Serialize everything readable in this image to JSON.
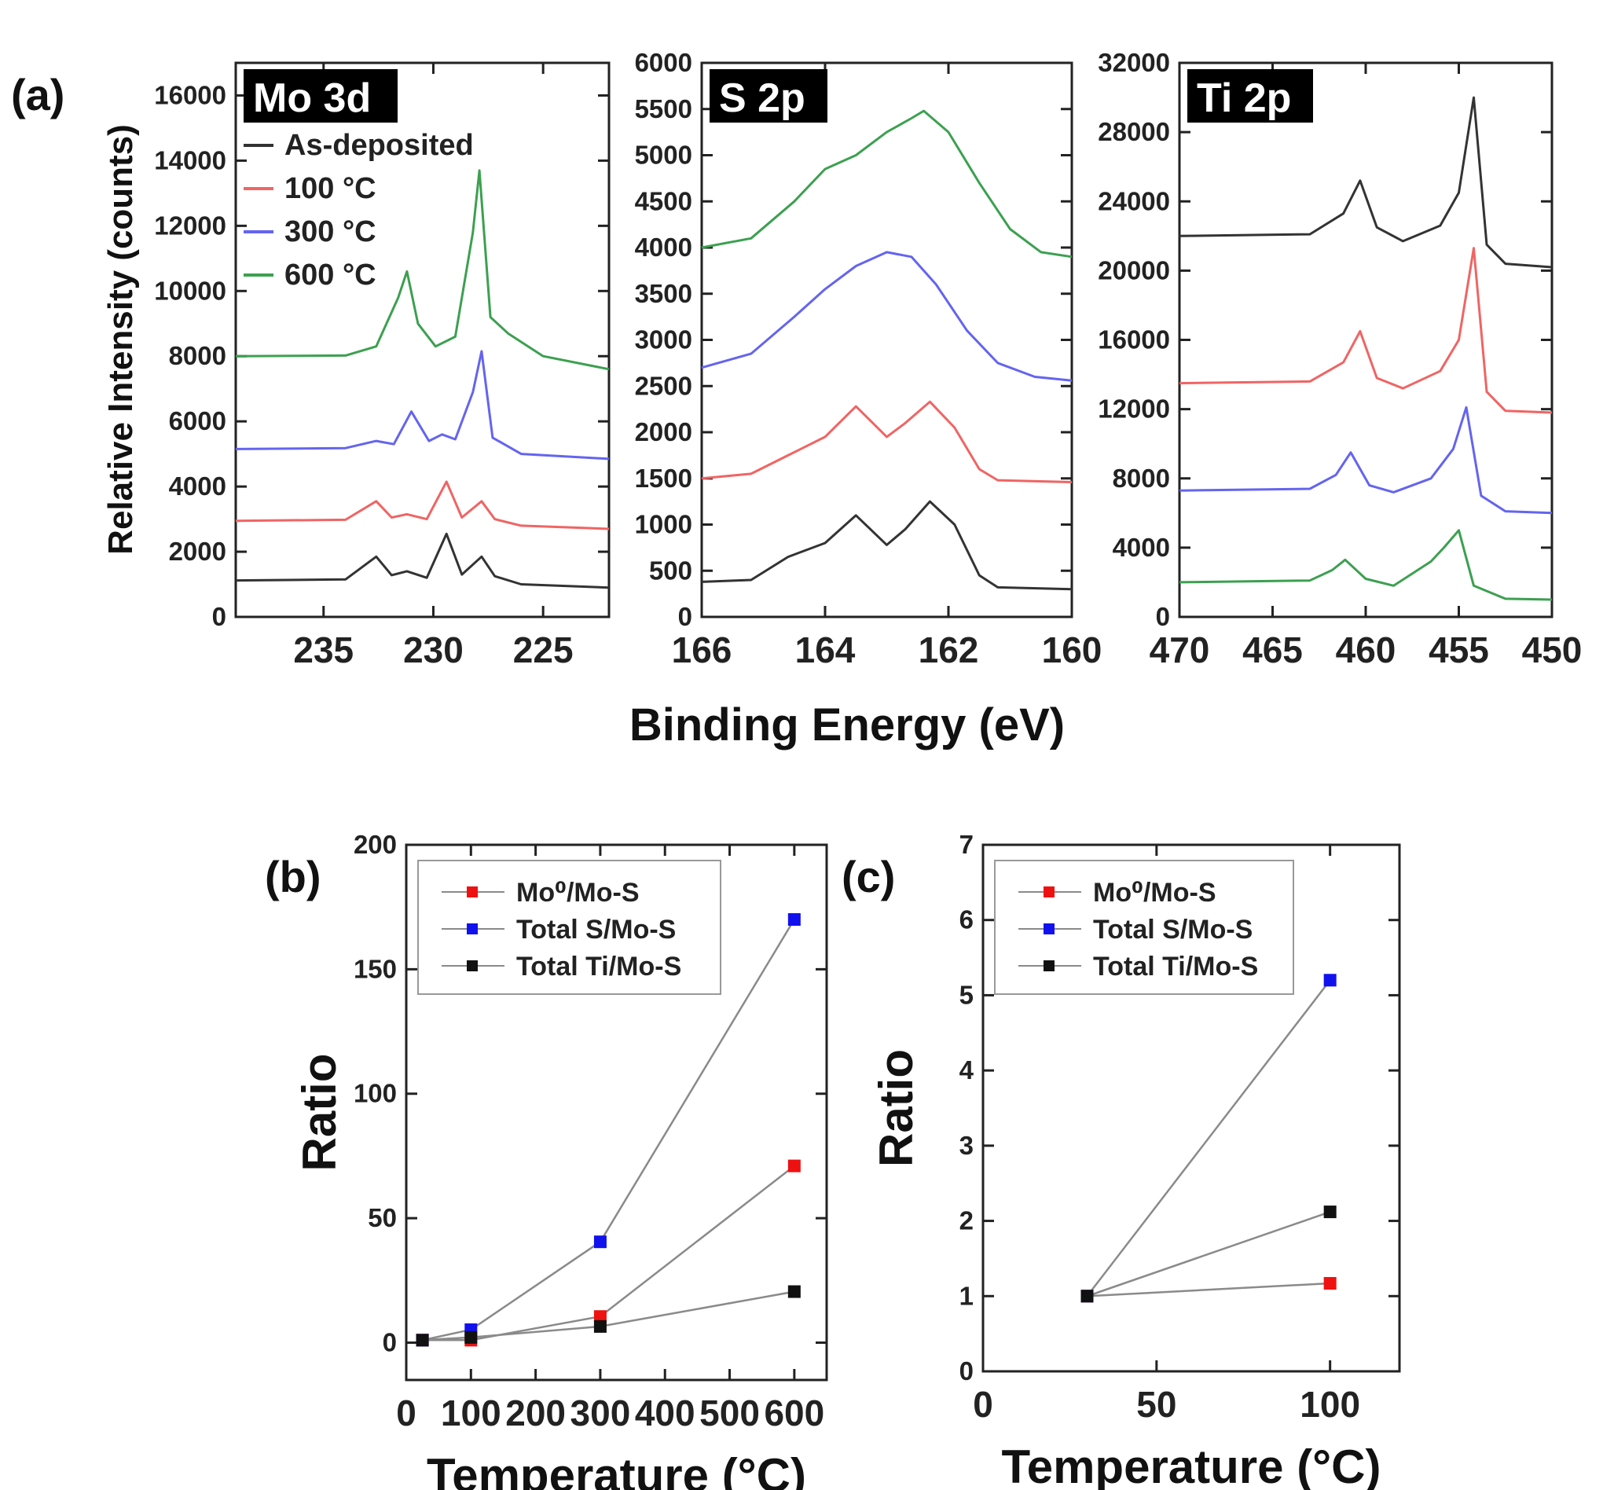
{
  "chart_data": [
    {
      "type": "line",
      "panel_label": "(a)",
      "panel_title": "Mo 3d",
      "ylabel": "Relative Intensity (counts)",
      "xlabel": "Binding Energy (eV)",
      "xlim": [
        239,
        222
      ],
      "ylim": [
        0,
        17000
      ],
      "x_ticks": [
        235,
        230,
        225
      ],
      "y_ticks": [
        0,
        2000,
        4000,
        6000,
        8000,
        10000,
        12000,
        14000,
        16000
      ],
      "legend_position": "top-left",
      "series": [
        {
          "name": "As-deposited",
          "color": "#333333",
          "x": [
            239,
            234,
            232.6,
            231.9,
            231.2,
            230.3,
            229.4,
            228.7,
            227.8,
            227.2,
            226,
            222
          ],
          "y": [
            1120,
            1150,
            1850,
            1280,
            1400,
            1200,
            2550,
            1300,
            1850,
            1250,
            1000,
            900
          ]
        },
        {
          "name": "100 °C",
          "color": "#f06464",
          "x": [
            239,
            234,
            232.6,
            231.9,
            231.2,
            230.3,
            229.4,
            228.7,
            227.8,
            227.2,
            226,
            222
          ],
          "y": [
            2950,
            2980,
            3550,
            3050,
            3150,
            3000,
            4150,
            3050,
            3550,
            3000,
            2800,
            2700
          ]
        },
        {
          "name": "300 °C",
          "color": "#6464f0",
          "x": [
            239,
            234,
            232.6,
            231.8,
            231.0,
            230.2,
            229.6,
            229.0,
            228.2,
            227.8,
            227.3,
            226,
            222
          ],
          "y": [
            5150,
            5180,
            5400,
            5300,
            6300,
            5400,
            5600,
            5450,
            6900,
            8150,
            5500,
            5000,
            4850
          ]
        },
        {
          "name": "600 °C",
          "color": "#3ca050",
          "x": [
            239,
            234,
            232.6,
            231.6,
            231.2,
            230.7,
            229.9,
            229.0,
            228.2,
            227.9,
            227.4,
            226.6,
            225,
            222
          ],
          "y": [
            8000,
            8020,
            8300,
            9800,
            10600,
            9000,
            8300,
            8600,
            11800,
            13700,
            9200,
            8700,
            8000,
            7600
          ]
        }
      ]
    },
    {
      "type": "line",
      "panel_title": "S 2p",
      "xlim": [
        166,
        160
      ],
      "ylim": [
        0,
        6000
      ],
      "x_ticks": [
        166,
        164,
        162,
        160
      ],
      "y_ticks": [
        0,
        500,
        1000,
        1500,
        2000,
        2500,
        3000,
        3500,
        4000,
        4500,
        5000,
        5500,
        6000
      ],
      "series": [
        {
          "name": "As-deposited",
          "color": "#333333",
          "x": [
            166,
            165.2,
            164.6,
            164.0,
            163.5,
            163.0,
            162.7,
            162.3,
            161.9,
            161.5,
            161.2,
            160
          ],
          "y": [
            380,
            400,
            650,
            800,
            1100,
            780,
            950,
            1250,
            1000,
            450,
            320,
            300
          ]
        },
        {
          "name": "100 °C",
          "color": "#f06464",
          "x": [
            166,
            165.2,
            164.6,
            164.0,
            163.5,
            163.0,
            162.7,
            162.3,
            161.9,
            161.5,
            161.2,
            160
          ],
          "y": [
            1500,
            1550,
            1750,
            1950,
            2280,
            1950,
            2100,
            2330,
            2050,
            1600,
            1480,
            1460
          ]
        },
        {
          "name": "300 °C",
          "color": "#6464f0",
          "x": [
            166,
            165.2,
            164.5,
            164.0,
            163.5,
            163.0,
            162.6,
            162.2,
            161.7,
            161.2,
            160.6,
            160
          ],
          "y": [
            2700,
            2850,
            3250,
            3550,
            3800,
            3950,
            3900,
            3600,
            3100,
            2750,
            2600,
            2560
          ]
        },
        {
          "name": "600 °C",
          "color": "#3ca050",
          "x": [
            166,
            165.2,
            164.5,
            164.0,
            163.5,
            163.0,
            162.6,
            162.4,
            162.0,
            161.5,
            161.0,
            160.5,
            160
          ],
          "y": [
            4000,
            4100,
            4500,
            4850,
            5000,
            5250,
            5400,
            5480,
            5250,
            4700,
            4200,
            3950,
            3900
          ]
        }
      ]
    },
    {
      "type": "line",
      "panel_title": "Ti 2p",
      "xlim": [
        470,
        450
      ],
      "ylim": [
        0,
        32000
      ],
      "x_ticks": [
        470,
        465,
        460,
        455,
        450
      ],
      "y_ticks": [
        0,
        4000,
        8000,
        12000,
        16000,
        20000,
        24000,
        28000,
        32000
      ],
      "series": [
        {
          "name": "As-deposited",
          "color": "#333333",
          "x": [
            470,
            463,
            461.2,
            460.3,
            459.4,
            458,
            456,
            455,
            454.2,
            453.5,
            452.5,
            450
          ],
          "y": [
            22000,
            22100,
            23300,
            25200,
            22500,
            21700,
            22600,
            24500,
            30000,
            21500,
            20400,
            20200
          ]
        },
        {
          "name": "100 °C",
          "color": "#f06464",
          "x": [
            470,
            463,
            461.2,
            460.3,
            459.4,
            458,
            456,
            455,
            454.2,
            453.5,
            452.5,
            450
          ],
          "y": [
            13500,
            13600,
            14700,
            16500,
            13800,
            13200,
            14200,
            16000,
            21300,
            13000,
            11900,
            11800
          ]
        },
        {
          "name": "300 °C",
          "color": "#6464f0",
          "x": [
            470,
            463,
            461.6,
            460.8,
            459.8,
            458.5,
            456.5,
            455.3,
            454.6,
            453.8,
            452.5,
            450
          ],
          "y": [
            7300,
            7400,
            8200,
            9500,
            7600,
            7200,
            8000,
            9700,
            12100,
            7000,
            6100,
            6000
          ]
        },
        {
          "name": "600 °C",
          "color": "#3ca050",
          "x": [
            470,
            463,
            461.8,
            461.1,
            460,
            458.5,
            456.5,
            455.8,
            455.0,
            454.2,
            452.5,
            450
          ],
          "y": [
            2000,
            2100,
            2700,
            3300,
            2200,
            1800,
            3200,
            4000,
            5000,
            1800,
            1050,
            1000
          ]
        }
      ]
    },
    {
      "type": "scatter",
      "panel_label": "(b)",
      "xlabel": "Temperature (°C)",
      "ylabel": "Ratio",
      "xlim": [
        0,
        650
      ],
      "ylim": [
        -15,
        200
      ],
      "x_ticks": [
        0,
        100,
        200,
        300,
        400,
        500,
        600
      ],
      "y_ticks": [
        0,
        50,
        100,
        150,
        200
      ],
      "legend_position": "top-left",
      "series": [
        {
          "name": "Mo⁰/Mo-S",
          "color": "#ee1111",
          "x": [
            25,
            100,
            300,
            600
          ],
          "y": [
            1,
            1,
            10.5,
            71
          ]
        },
        {
          "name": "Total S/Mo-S",
          "color": "#1111ee",
          "x": [
            25,
            100,
            300,
            600
          ],
          "y": [
            1,
            5.2,
            40.5,
            170
          ]
        },
        {
          "name": "Total Ti/Mo-S",
          "color": "#111111",
          "x": [
            25,
            100,
            300,
            600
          ],
          "y": [
            1,
            2.1,
            6.5,
            20.5
          ]
        }
      ]
    },
    {
      "type": "scatter",
      "panel_label": "(c)",
      "xlabel": "Temperature (°C)",
      "ylabel": "Ratio",
      "xlim": [
        0,
        120
      ],
      "ylim": [
        0,
        7
      ],
      "x_ticks": [
        0,
        50,
        100
      ],
      "y_ticks": [
        0,
        1,
        2,
        3,
        4,
        5,
        6,
        7
      ],
      "legend_position": "top-left",
      "series": [
        {
          "name": "Mo⁰/Mo-S",
          "color": "#ee1111",
          "x": [
            30,
            100
          ],
          "y": [
            1,
            1.17
          ]
        },
        {
          "name": "Total S/Mo-S",
          "color": "#1111ee",
          "x": [
            30,
            100
          ],
          "y": [
            1,
            5.2
          ]
        },
        {
          "name": "Total Ti/Mo-S",
          "color": "#111111",
          "x": [
            30,
            100
          ],
          "y": [
            1,
            2.12
          ]
        }
      ]
    }
  ]
}
